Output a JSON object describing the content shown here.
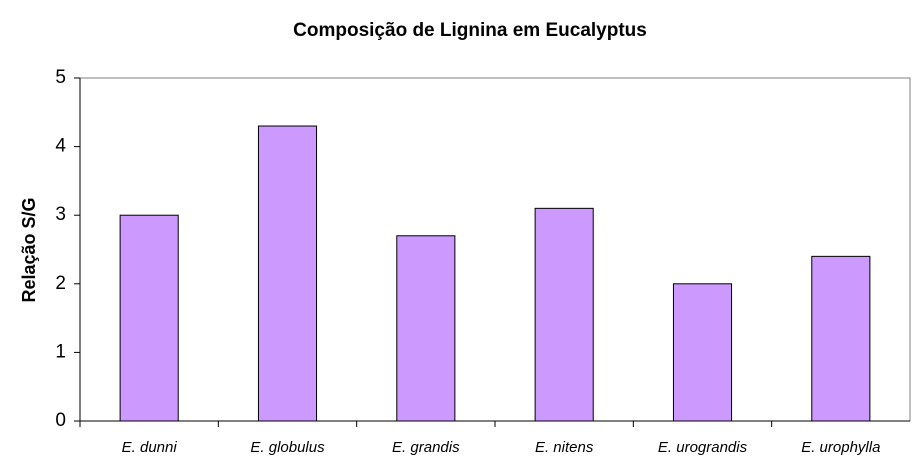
{
  "chart_data": {
    "type": "bar",
    "title": "Composição de Lignina em Eucalyptus",
    "y_label": "Relação S/G",
    "categories": [
      "E. dunni",
      "E. globulus",
      "E. grandis",
      "E. nitens",
      "E. urograndis",
      "E. urophylla"
    ],
    "values": [
      3.0,
      4.3,
      2.7,
      3.1,
      2.0,
      2.4
    ],
    "color": "#cc99ff",
    "ylim": [
      0,
      5
    ],
    "yticks": [
      0,
      1,
      2,
      3,
      4,
      5
    ],
    "grid": false
  }
}
